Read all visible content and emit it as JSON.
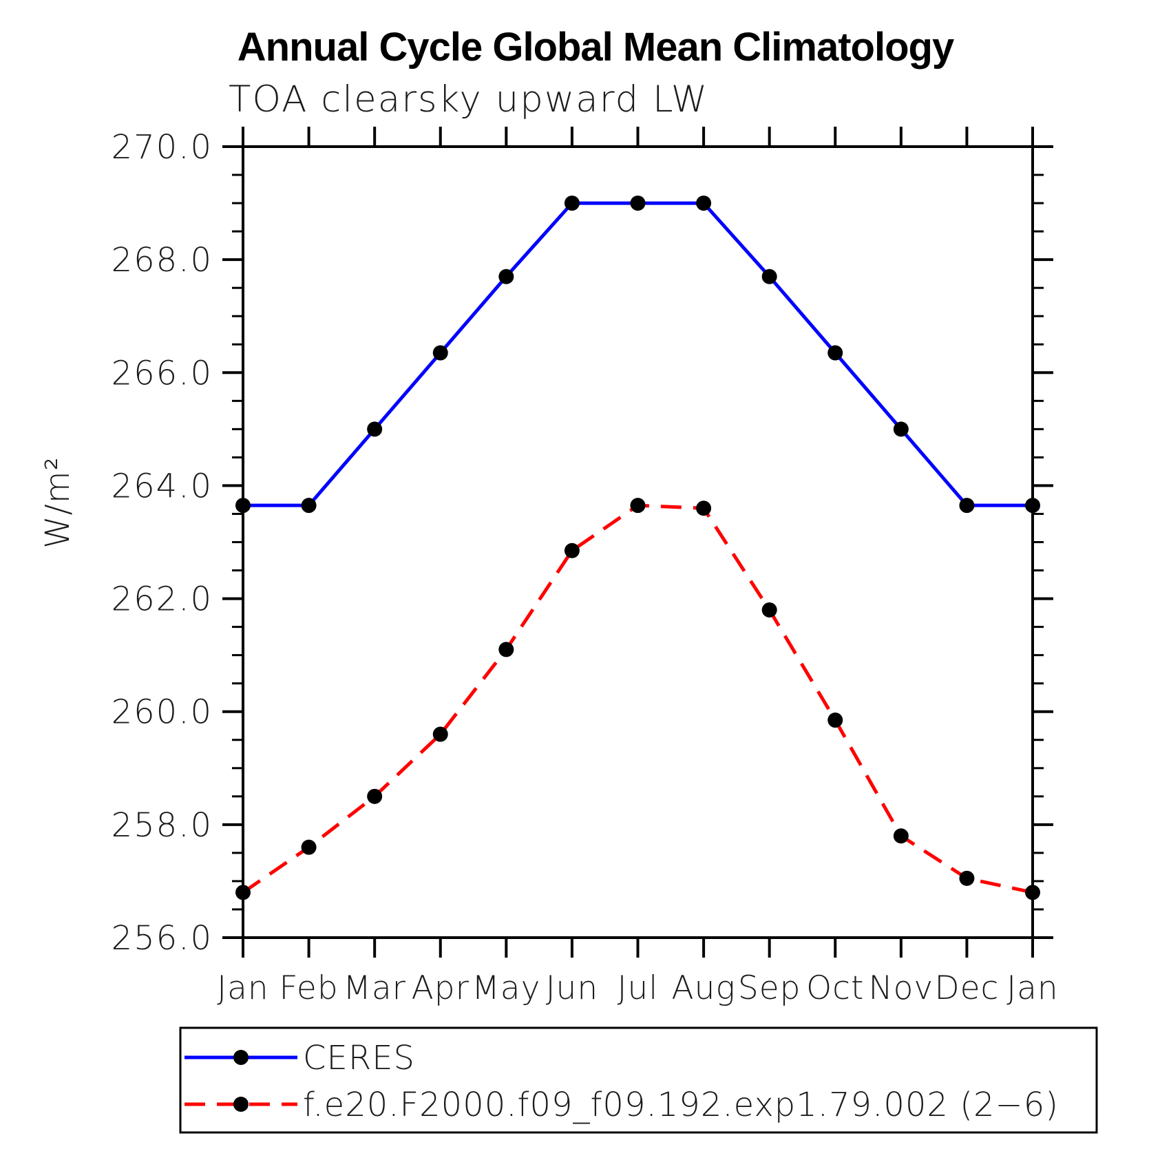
{
  "page": {
    "background": "#FFFFFF"
  },
  "chart_data": {
    "type": "line",
    "title": "Annual Cycle Global Mean Climatology",
    "subtitle": "TOA clearsky upward LW",
    "xlabel": "",
    "ylabel": "W/m²",
    "categories": [
      "Jan",
      "Feb",
      "Mar",
      "Apr",
      "May",
      "Jun",
      "Jul",
      "Aug",
      "Sep",
      "Oct",
      "Nov",
      "Dec",
      "Jan"
    ],
    "ylim": [
      256.0,
      270.0
    ],
    "ytick_major_interval": 2.0,
    "ytick_minor_interval": 0.5,
    "ytick_labels": [
      "256.0",
      "258.0",
      "260.0",
      "262.0",
      "264.0",
      "266.0",
      "268.0",
      "270.0"
    ],
    "grid": false,
    "legend_position": "below-plot-boxed",
    "axis_color": "#000000",
    "marker_color": "#000000",
    "series": [
      {
        "name": "CERES",
        "line_color": "#0000FF",
        "line_style": "solid",
        "marker": "filled-circle",
        "values": [
          263.65,
          263.65,
          265.0,
          266.35,
          267.7,
          269.0,
          269.0,
          269.0,
          267.7,
          266.35,
          265.0,
          263.65,
          263.65
        ]
      },
      {
        "name": "f.e20.F2000.f09_f09.192.exp1.79.002 (2−6)",
        "line_color": "#FF0000",
        "line_style": "dashed",
        "marker": "filled-circle",
        "values": [
          256.8,
          257.6,
          258.5,
          259.6,
          261.1,
          262.85,
          263.65,
          263.6,
          261.8,
          259.85,
          257.8,
          257.05,
          256.8
        ]
      }
    ]
  }
}
